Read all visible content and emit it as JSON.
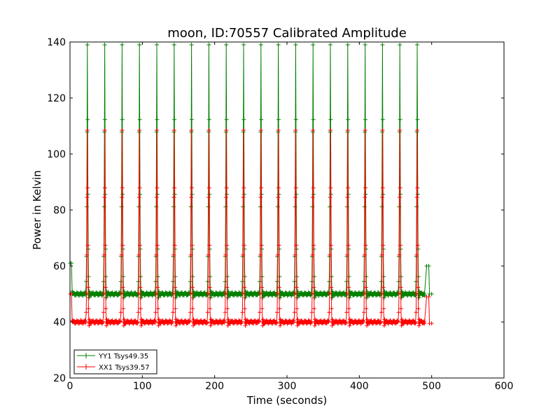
{
  "chart_data": {
    "type": "line",
    "title": "moon, ID:70557 Calibrated Amplitude",
    "xlabel": "Time (seconds)",
    "ylabel": "Power in Kelvin",
    "xlim": [
      0,
      600
    ],
    "ylim": [
      20,
      140
    ],
    "xticks": [
      "0",
      "100",
      "200",
      "300",
      "400",
      "500",
      "600"
    ],
    "yticks": [
      "20",
      "40",
      "60",
      "80",
      "100",
      "120",
      "140"
    ],
    "grid": false,
    "legend_position": "lower-left",
    "peak_times": [
      24,
      48,
      72,
      96,
      120,
      144,
      168,
      192,
      216,
      240,
      264,
      288,
      312,
      336,
      360,
      384,
      408,
      432,
      456,
      480
    ],
    "series": [
      {
        "name": "YY1 Tsys49.35",
        "color": "#008000",
        "baseline": 50,
        "peak": 139,
        "start": [
          [
            0.5,
            61
          ],
          [
            2,
            61
          ],
          [
            3,
            51
          ]
        ],
        "end": [
          [
            490,
            49.5
          ],
          [
            493,
            60
          ],
          [
            496,
            60
          ],
          [
            497,
            50
          ],
          [
            500,
            50
          ]
        ]
      },
      {
        "name": "XX1 Tsys39.57",
        "color": "#ff0000",
        "baseline": 40,
        "peak": 108.5,
        "start": [
          [
            0.5,
            50
          ],
          [
            2,
            50
          ],
          [
            3,
            40.5
          ]
        ],
        "end": [
          [
            490,
            39.5
          ],
          [
            493,
            49
          ],
          [
            496,
            49
          ],
          [
            497,
            39.5
          ],
          [
            500,
            39.5
          ]
        ]
      }
    ]
  }
}
